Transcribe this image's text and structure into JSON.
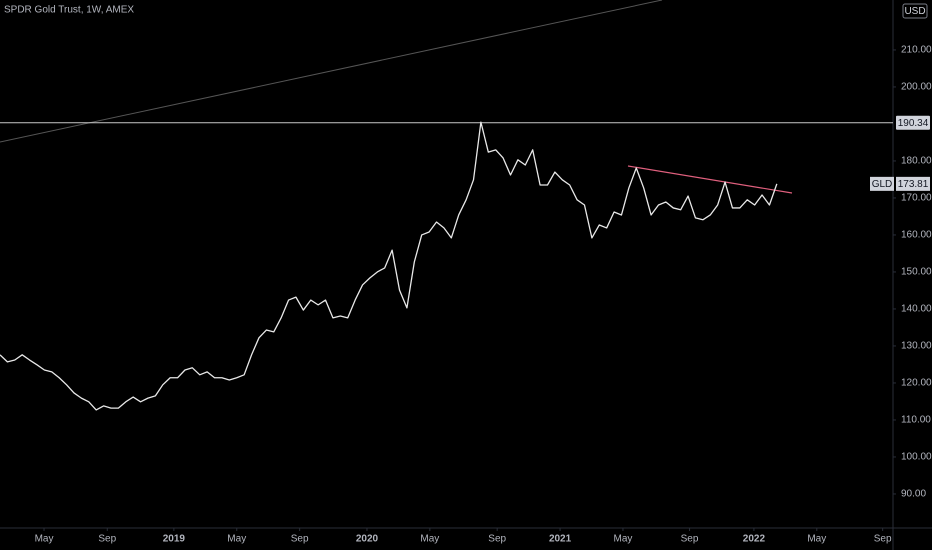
{
  "chart_data": {
    "type": "line",
    "title": "SPDR Gold Trust, 1W, AMEX",
    "currency": "USD",
    "series": [
      {
        "name": "GLD",
        "color": "#e8e8e8",
        "values": [
          127.6,
          125.7,
          126.2,
          127.6,
          126.2,
          124.9,
          123.5,
          123.0,
          121.4,
          119.5,
          117.3,
          115.9,
          114.9,
          112.7,
          113.8,
          113.2,
          113.2,
          114.9,
          116.2,
          114.9,
          115.9,
          116.5,
          119.5,
          121.4,
          121.4,
          123.5,
          124.1,
          122.2,
          123.0,
          121.4,
          121.4,
          120.8,
          121.4,
          122.2,
          127.6,
          132.2,
          134.3,
          133.8,
          137.6,
          142.4,
          143.2,
          139.7,
          142.4,
          141.1,
          142.4,
          137.6,
          138.1,
          137.6,
          142.4,
          146.5,
          148.4,
          150.0,
          151.1,
          155.9,
          145.1,
          140.3,
          152.7,
          160.0,
          160.8,
          163.5,
          161.9,
          159.2,
          165.4,
          169.5,
          174.9,
          190.5,
          182.4,
          183.0,
          180.8,
          176.2,
          180.3,
          178.9,
          183.0,
          173.5,
          173.5,
          177.0,
          174.9,
          173.5,
          169.5,
          168.1,
          159.2,
          162.7,
          161.9,
          166.2,
          165.4,
          172.7,
          178.1,
          172.7,
          165.4,
          168.1,
          168.9,
          167.3,
          166.8,
          170.5,
          164.6,
          164.1,
          165.4,
          168.1,
          174.3,
          167.3,
          167.3,
          169.5,
          168.1,
          170.8,
          168.1,
          173.81
        ]
      }
    ],
    "last_price": 173.81,
    "hline": 190.34,
    "xlim": [
      0,
      120.7
    ],
    "xticks": [
      {
        "value": 5.95,
        "label": "May"
      },
      {
        "value": 14.5,
        "label": "Sep"
      },
      {
        "value": 23.5,
        "label": "2019"
      },
      {
        "value": 32,
        "label": "May"
      },
      {
        "value": 40.5,
        "label": "Sep"
      },
      {
        "value": 49.6,
        "label": "2020"
      },
      {
        "value": 58.1,
        "label": "May"
      },
      {
        "value": 67.2,
        "label": "Sep"
      },
      {
        "value": 75.7,
        "label": "2021"
      },
      {
        "value": 84.2,
        "label": "May"
      },
      {
        "value": 93.2,
        "label": "Sep"
      },
      {
        "value": 101.9,
        "label": "2022"
      },
      {
        "value": 110.4,
        "label": "May"
      },
      {
        "value": 119.3,
        "label": "Sep"
      }
    ],
    "ylim": [
      80.8,
      223.5
    ],
    "yticks": [
      {
        "value": 90,
        "label": "90.00"
      },
      {
        "value": 100,
        "label": "100.00"
      },
      {
        "value": 110,
        "label": "110.00"
      },
      {
        "value": 120,
        "label": "120.00"
      },
      {
        "value": 130,
        "label": "130.00"
      },
      {
        "value": 140,
        "label": "140.00"
      },
      {
        "value": 150,
        "label": "150.00"
      },
      {
        "value": 160,
        "label": "160.00"
      },
      {
        "value": 170,
        "label": "170.00"
      },
      {
        "value": 180,
        "label": "180.00"
      },
      {
        "value": 200,
        "label": "200.00"
      },
      {
        "value": 210,
        "label": "210.00"
      }
    ]
  }
}
